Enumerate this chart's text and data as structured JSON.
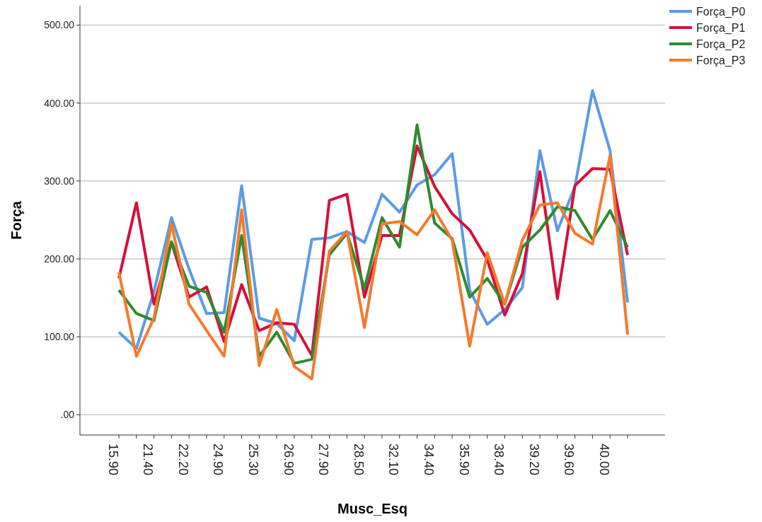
{
  "chart_data": {
    "type": "line",
    "xlabel": "Musc_Esq",
    "ylabel": "Força",
    "categories": [
      "15.90",
      null,
      "21.40",
      null,
      "22.20",
      null,
      "24.90",
      null,
      "25.30",
      null,
      "26.90",
      null,
      "27.90",
      null,
      "28.50",
      null,
      "32.10",
      null,
      "34.40",
      null,
      "35.90",
      null,
      "38.40",
      null,
      "39.20",
      null,
      "39.60",
      null,
      "40.00",
      null
    ],
    "series": [
      {
        "name": "Força_P0",
        "color": "#5b9be6",
        "values": [
          106,
          85,
          158,
          253,
          187,
          130,
          131,
          294,
          124,
          117,
          95,
          225,
          227,
          235,
          221,
          283,
          260,
          295,
          308,
          335,
          160,
          116,
          135,
          163,
          339,
          236,
          293,
          416,
          339,
          144
        ]
      },
      {
        "name": "Força_P1",
        "color": "#d5103a",
        "values": [
          175,
          272,
          142,
          221,
          151,
          164,
          94,
          167,
          108,
          118,
          116,
          76,
          275,
          283,
          151,
          230,
          230,
          345,
          293,
          258,
          237,
          199,
          128,
          181,
          312,
          149,
          294,
          316,
          315,
          205
        ]
      },
      {
        "name": "Força_P2",
        "color": "#2e8b2e",
        "values": [
          160,
          130,
          121,
          222,
          165,
          157,
          106,
          230,
          75,
          106,
          66,
          71,
          205,
          233,
          162,
          253,
          215,
          372,
          246,
          226,
          151,
          175,
          142,
          215,
          237,
          267,
          262,
          225,
          262,
          215
        ]
      },
      {
        "name": "Força_P3",
        "color": "#f47a2c",
        "values": [
          183,
          75,
          124,
          245,
          142,
          108,
          75,
          263,
          63,
          135,
          62,
          46,
          210,
          235,
          112,
          245,
          248,
          231,
          263,
          224,
          88,
          208,
          142,
          224,
          269,
          272,
          233,
          219,
          333,
          103
        ]
      }
    ],
    "ylim": [
      -26,
      525
    ],
    "yticks": [
      {
        "value": 0,
        "label": ".00"
      },
      {
        "value": 100,
        "label": "100.00"
      },
      {
        "value": 200,
        "label": "200.00"
      },
      {
        "value": 300,
        "label": "300.00"
      },
      {
        "value": 400,
        "label": "400.00"
      },
      {
        "value": 500,
        "label": "500.00"
      }
    ],
    "grid": "y",
    "legend": "top right",
    "line_style": "solid",
    "marker": "none"
  }
}
